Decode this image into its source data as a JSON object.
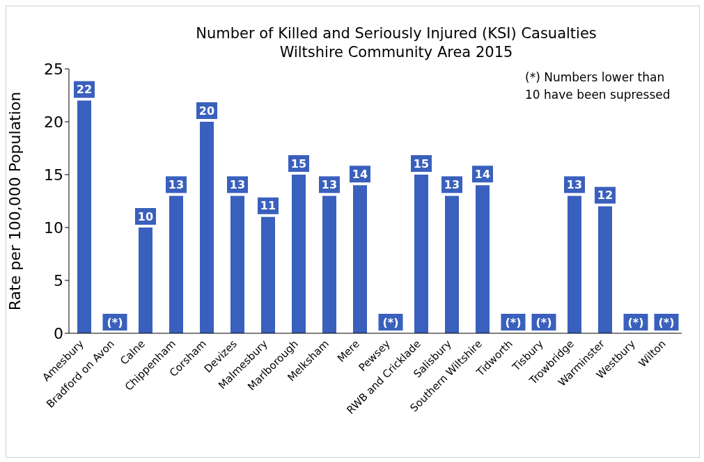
{
  "chart_data": {
    "type": "bar",
    "title": "Number of Killed and Seriously Injured (KSI) Casualties",
    "subtitle": "Wiltshire Community Area 2015",
    "ylabel": "Rate per 100,000 Population",
    "categories": [
      "Amesbury",
      "Bradford on Avon",
      "Calne",
      "Chippenham",
      "Corsham",
      "Devizes",
      "Malmesbury",
      "Marlborough",
      "Melksham",
      "Mere",
      "Pewsey",
      "RWB and Cricklade",
      "Salisbury",
      "Southern Wiltshire",
      "Tidworth",
      "Tisbury",
      "Trowbridge",
      "Warminster",
      "Westbury",
      "Wilton"
    ],
    "values": [
      22,
      null,
      10,
      13,
      20,
      13,
      11,
      15,
      13,
      14,
      null,
      15,
      13,
      14,
      null,
      null,
      13,
      12,
      null,
      null
    ],
    "value_labels": [
      "22",
      "(*)",
      "10",
      "13",
      "20",
      "13",
      "11",
      "15",
      "13",
      "14",
      "(*)",
      "15",
      "13",
      "14",
      "(*)",
      "(*)",
      "13",
      "12",
      "(*)",
      "(*)"
    ],
    "color": "#3a60bd",
    "ylim": [
      0,
      25
    ],
    "yticks": [
      0,
      5,
      10,
      15,
      20,
      25
    ],
    "annotations": [
      "(*) Numbers lower than 10 have been supressed"
    ]
  }
}
